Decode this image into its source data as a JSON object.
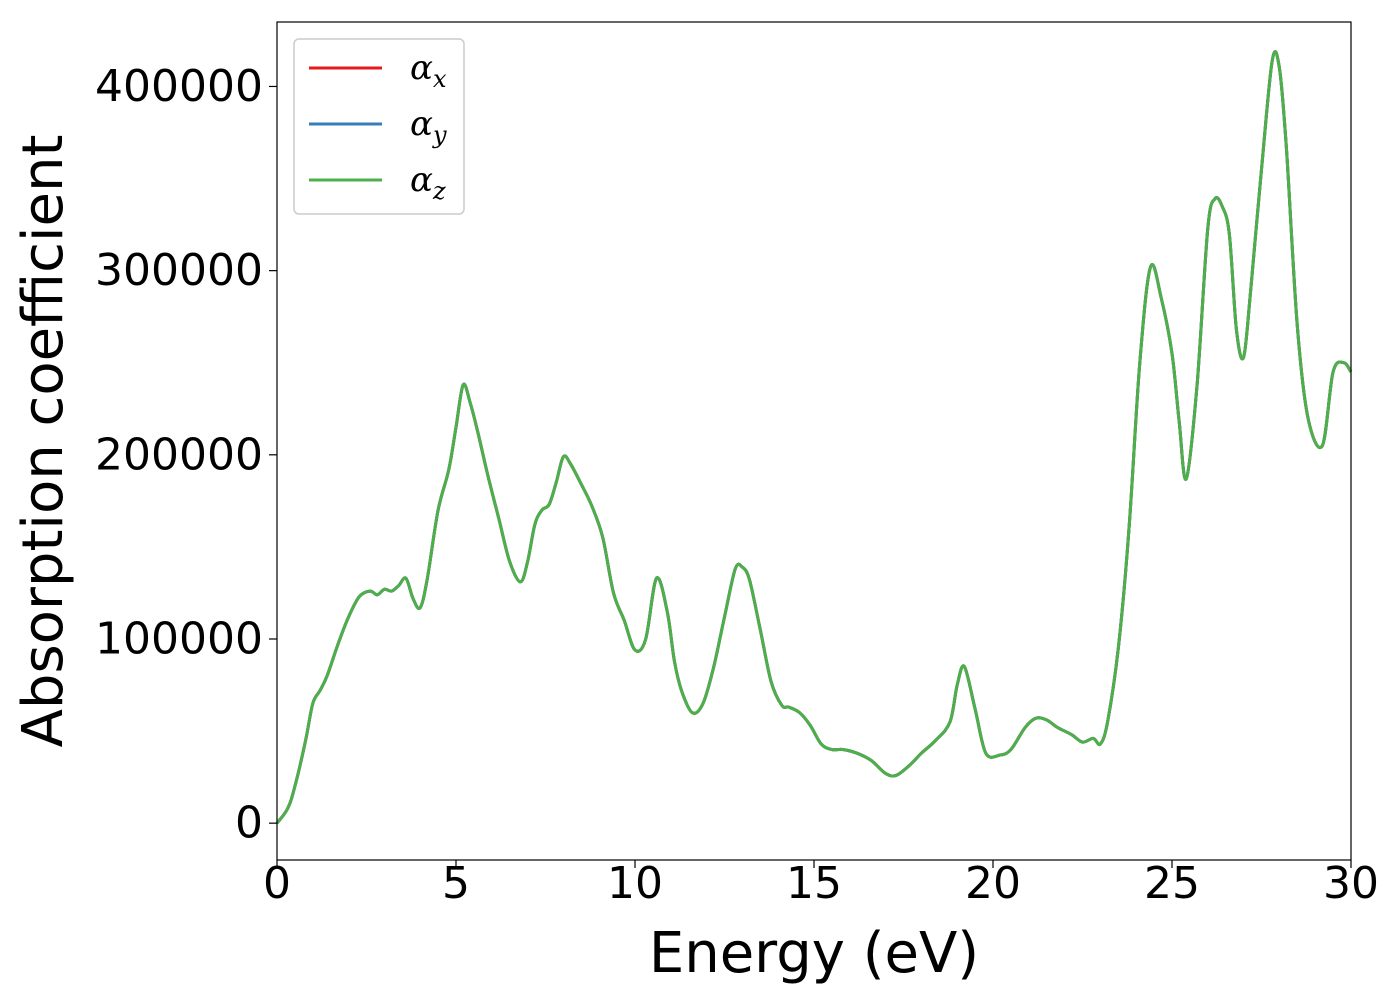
{
  "chart_data": {
    "type": "line",
    "xlabel": "Energy (eV)",
    "ylabel": "Absorption coefficient",
    "xlim": [
      0,
      30
    ],
    "ylim": [
      -20000,
      435000
    ],
    "xticks": [
      0,
      5,
      10,
      15,
      20,
      25,
      30
    ],
    "yticks": [
      0,
      100000,
      200000,
      300000,
      400000
    ],
    "grid": false,
    "legend_position": "top-left",
    "colors": {
      "alpha_x": "#e41a1c",
      "alpha_y": "#377eb8",
      "alpha_z": "#4daf4a"
    },
    "series": [
      {
        "name": "α_x",
        "legend_main": "α",
        "legend_sub": "x",
        "color": "#e41a1c",
        "same_as": "α_z"
      },
      {
        "name": "α_y",
        "legend_main": "α",
        "legend_sub": "y",
        "color": "#377eb8",
        "same_as": "α_z"
      },
      {
        "name": "α_z",
        "legend_main": "α",
        "legend_sub": "z",
        "color": "#4daf4a",
        "x": [
          0,
          0.3,
          0.5,
          0.8,
          1.0,
          1.2,
          1.4,
          1.7,
          2.0,
          2.3,
          2.6,
          2.8,
          3.0,
          3.2,
          3.4,
          3.6,
          3.8,
          4.0,
          4.2,
          4.5,
          4.8,
          5.0,
          5.2,
          5.4,
          5.6,
          5.9,
          6.2,
          6.5,
          6.8,
          7.0,
          7.2,
          7.4,
          7.6,
          7.8,
          8.0,
          8.2,
          8.5,
          8.8,
          9.1,
          9.4,
          9.7,
          10.0,
          10.3,
          10.6,
          10.9,
          11.1,
          11.3,
          11.6,
          11.9,
          12.2,
          12.5,
          12.8,
          13.0,
          13.2,
          13.5,
          13.8,
          14.1,
          14.3,
          14.6,
          14.9,
          15.2,
          15.5,
          15.8,
          16.2,
          16.6,
          17.0,
          17.3,
          17.7,
          18.0,
          18.4,
          18.8,
          19.0,
          19.2,
          19.5,
          19.8,
          20.2,
          20.5,
          20.9,
          21.2,
          21.5,
          21.8,
          22.2,
          22.5,
          22.8,
          23.0,
          23.2,
          23.5,
          23.8,
          24.1,
          24.4,
          24.7,
          25.0,
          25.2,
          25.4,
          25.7,
          26.0,
          26.2,
          26.4,
          26.6,
          26.8,
          27.0,
          27.2,
          27.5,
          27.8,
          28.0,
          28.2,
          28.5,
          28.8,
          29.2,
          29.5,
          29.8,
          30.0
        ],
        "y": [
          0,
          8000,
          20000,
          45000,
          65000,
          72000,
          80000,
          97000,
          112000,
          123000,
          126000,
          124000,
          127000,
          126000,
          129000,
          133000,
          122000,
          117000,
          133000,
          170000,
          192000,
          215000,
          238000,
          228000,
          213000,
          188000,
          165000,
          142000,
          131000,
          142000,
          162000,
          170000,
          173000,
          185000,
          199000,
          195000,
          184000,
          172000,
          155000,
          125000,
          110000,
          94000,
          100000,
          133000,
          115000,
          88000,
          72000,
          60000,
          65000,
          85000,
          112000,
          138000,
          139000,
          132000,
          105000,
          77000,
          64000,
          63000,
          60000,
          53000,
          43000,
          40000,
          40000,
          38000,
          34000,
          27000,
          26000,
          32000,
          38000,
          45000,
          55000,
          75000,
          85000,
          62000,
          38000,
          37000,
          40000,
          52000,
          57000,
          56000,
          52000,
          48000,
          44000,
          46000,
          43000,
          55000,
          95000,
          160000,
          250000,
          302000,
          285000,
          255000,
          218000,
          187000,
          238000,
          323000,
          339000,
          335000,
          320000,
          268000,
          253000,
          290000,
          355000,
          414000,
          410000,
          365000,
          270000,
          220000,
          205000,
          245000,
          250000,
          245000
        ]
      }
    ]
  }
}
